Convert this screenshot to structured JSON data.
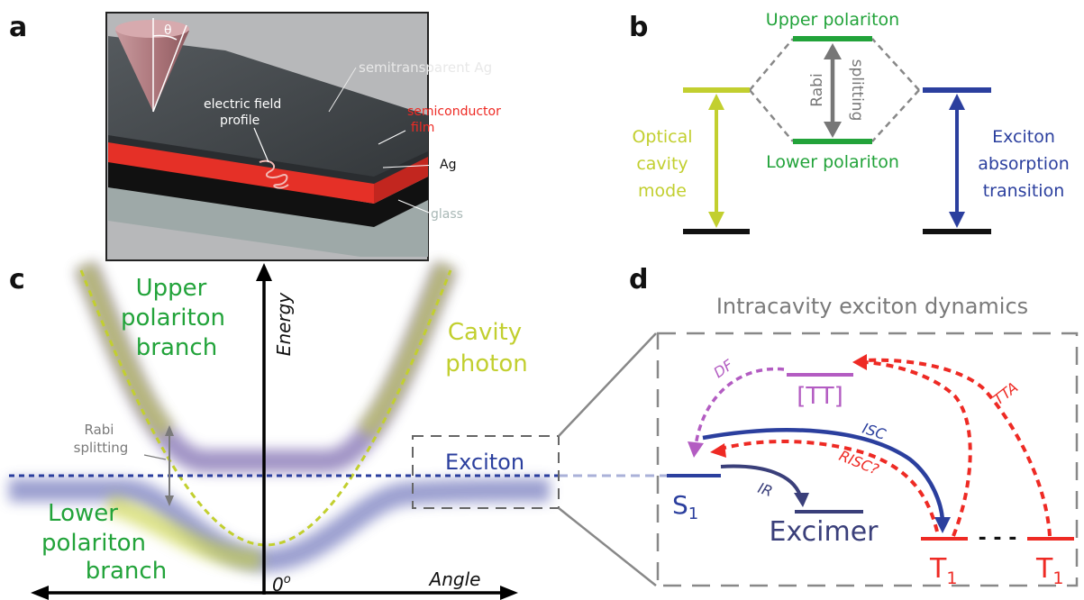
{
  "panel_letters": {
    "a": "a",
    "b": "b",
    "c": "c",
    "d": "d"
  },
  "colors": {
    "green": "#22a33a",
    "yellow_green": "#c2cf2f",
    "blue": "#2b3f9e",
    "red": "#ee2a24",
    "purple": "#b35cc2",
    "gray": "#7a7a7a",
    "excimer_blue": "#3a3f7a"
  },
  "panel_a": {
    "theta": "θ",
    "semitransparent_ag": "semitransparent Ag",
    "field_line1": "electric field",
    "field_line2": "profile",
    "semiconductor_line1": "semiconductor",
    "semiconductor_line2": "film",
    "ag": "Ag",
    "glass": "glass"
  },
  "panel_b": {
    "upper_polariton": "Upper polariton",
    "lower_polariton": "Lower polariton",
    "rabi": "Rabi",
    "splitting": "splitting",
    "optical_lines": [
      "Optical",
      "cavity",
      "mode"
    ],
    "exciton_lines": [
      "Exciton",
      "absorption",
      "transition"
    ]
  },
  "panel_c": {
    "energy": "Energy",
    "angle": "Angle",
    "zero_angle": "0",
    "degree": "o",
    "upper_branch": [
      "Upper",
      "polariton",
      "branch"
    ],
    "lower_branch": [
      "Lower",
      "polariton",
      "branch"
    ],
    "cavity_photon": [
      "Cavity",
      "photon"
    ],
    "rabi_split": [
      "Rabi",
      "splitting"
    ],
    "exciton": "Exciton"
  },
  "panel_d": {
    "title": "Intracavity exciton dynamics",
    "df": "DF",
    "tt": "[TT]",
    "tta": "TTA",
    "isc": "ISC",
    "risc": "RISC?",
    "ir": "IR",
    "s1": "S",
    "s1_sub": "1",
    "excimer": "Excimer",
    "t1": "T",
    "t1_sub": "1",
    "dots": "- - -"
  }
}
